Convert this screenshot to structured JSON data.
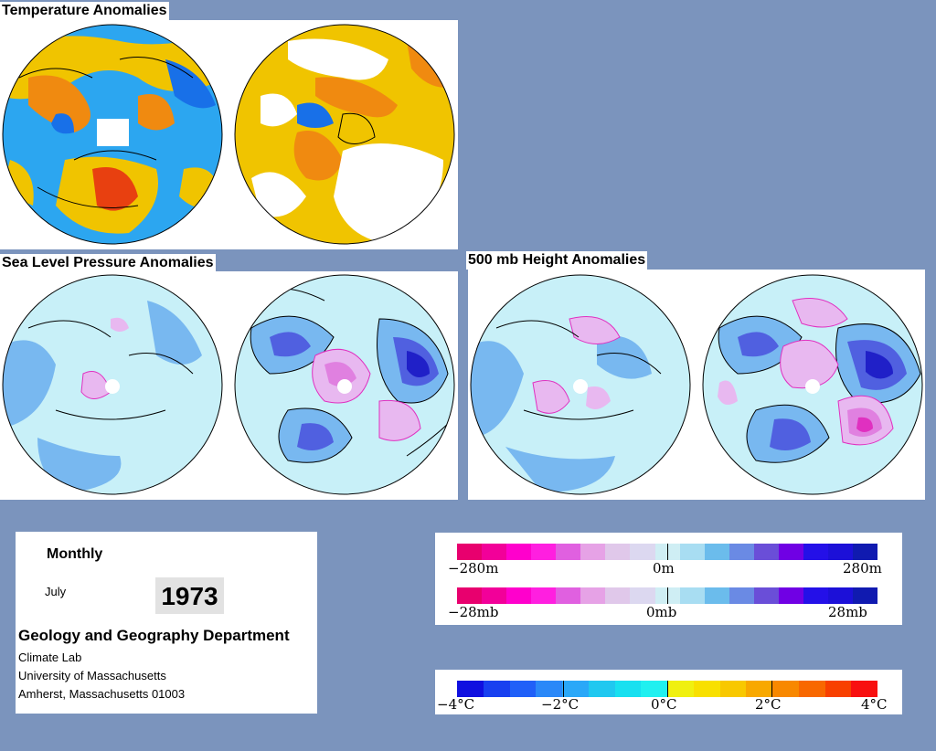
{
  "panels": {
    "temperature": {
      "title": "Temperature Anomalies"
    },
    "slp": {
      "title": "Sea Level Pressure Anomalies"
    },
    "h500": {
      "title": "500 mb Height Anomalies"
    }
  },
  "info": {
    "heading": "Monthly",
    "month": "July",
    "year": "1973",
    "department": "Geology and Geography Department",
    "lab": "Climate Lab",
    "university": "University of Massachusetts",
    "address": "Amherst, Massachusetts 01003"
  },
  "height_scale": {
    "min_label": "−280m",
    "mid_label": "0m",
    "max_label": "280m",
    "colors": [
      "#e8006e",
      "#f20099",
      "#ff00cc",
      "#ff1fe0",
      "#e060e0",
      "#e6a2e6",
      "#e0c8ea",
      "#dcd8f0",
      "#cfeef4",
      "#a8ddf2",
      "#6bbcec",
      "#6a8ae4",
      "#6a4ed8",
      "#7000e4",
      "#2410e8",
      "#1c10d8",
      "#101ab0"
    ]
  },
  "pressure_scale": {
    "min_label": "−28mb",
    "mid_label": "0mb",
    "max_label": "28mb",
    "colors": [
      "#e8006e",
      "#f20099",
      "#ff00cc",
      "#ff1fe0",
      "#e060e0",
      "#e6a2e6",
      "#e0c8ea",
      "#dcd8f0",
      "#cfeef4",
      "#a8ddf2",
      "#6bbcec",
      "#6a8ae4",
      "#6a4ed8",
      "#7000e4",
      "#2410e8",
      "#1c10d8",
      "#101ab0"
    ]
  },
  "temp_scale": {
    "labels": [
      "−4°C",
      "−2°C",
      "0°C",
      "2°C",
      "4°C"
    ],
    "colors": [
      "#1010e0",
      "#1840f0",
      "#2060f8",
      "#2a88f8",
      "#2aa8f8",
      "#20c8f0",
      "#18e0f0",
      "#20f0f0",
      "#f0f010",
      "#f8e000",
      "#f8c800",
      "#f8a800",
      "#f88800",
      "#f86800",
      "#f84000",
      "#f81010"
    ]
  },
  "map_colors": {
    "ocean_temp": "#2ca6f0",
    "warm": "#f0c400",
    "orange": "#f08a10",
    "hot": "#e84010",
    "cold": "#1870e8",
    "blank": "#ffffff",
    "light": "#c8f0f8",
    "mid": "#78b8f0",
    "deep": "#5060e0",
    "darkest": "#2020c8",
    "pink_light": "#e8b8f0",
    "pink": "#e080e0",
    "magenta": "#e030c0"
  }
}
